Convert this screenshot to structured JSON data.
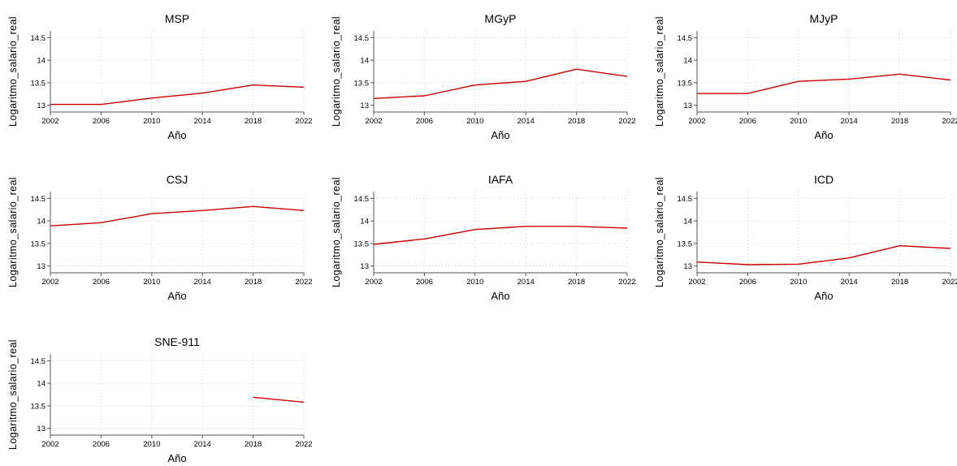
{
  "chart_data": {
    "type": "line",
    "layout": "small-multiples",
    "line_color": "#cc0000",
    "grid": true,
    "xlabel": "Año",
    "ylabel": "Logaritmo_salario_real",
    "xlim": [
      2002,
      2022
    ],
    "ylim": [
      12.85,
      14.65
    ],
    "x_ticks": [
      2002,
      2006,
      2010,
      2014,
      2018,
      2022
    ],
    "y_ticks": [
      13,
      13.5,
      14,
      14.5
    ],
    "y_tick_labels": [
      "13",
      "13.5",
      "14",
      "14.5"
    ],
    "x": [
      2002,
      2006,
      2010,
      2014,
      2018,
      2022
    ],
    "panels": [
      {
        "title": "MSP",
        "values": [
          13.02,
          13.02,
          13.16,
          13.27,
          13.45,
          13.4
        ]
      },
      {
        "title": "MGyP",
        "values": [
          13.15,
          13.21,
          13.45,
          13.53,
          13.8,
          13.64
        ]
      },
      {
        "title": "MJyP",
        "values": [
          13.26,
          13.26,
          13.53,
          13.58,
          13.69,
          13.56
        ]
      },
      {
        "title": "CSJ",
        "values": [
          13.89,
          13.96,
          14.16,
          14.23,
          14.32,
          14.23
        ]
      },
      {
        "title": "IAFA",
        "values": [
          13.48,
          13.6,
          13.81,
          13.88,
          13.88,
          13.84
        ]
      },
      {
        "title": "ICD",
        "values": [
          13.09,
          13.03,
          13.04,
          13.18,
          13.45,
          13.39
        ]
      },
      {
        "title": "SNE-911",
        "values": [
          null,
          null,
          null,
          null,
          13.69,
          13.58
        ]
      }
    ]
  }
}
